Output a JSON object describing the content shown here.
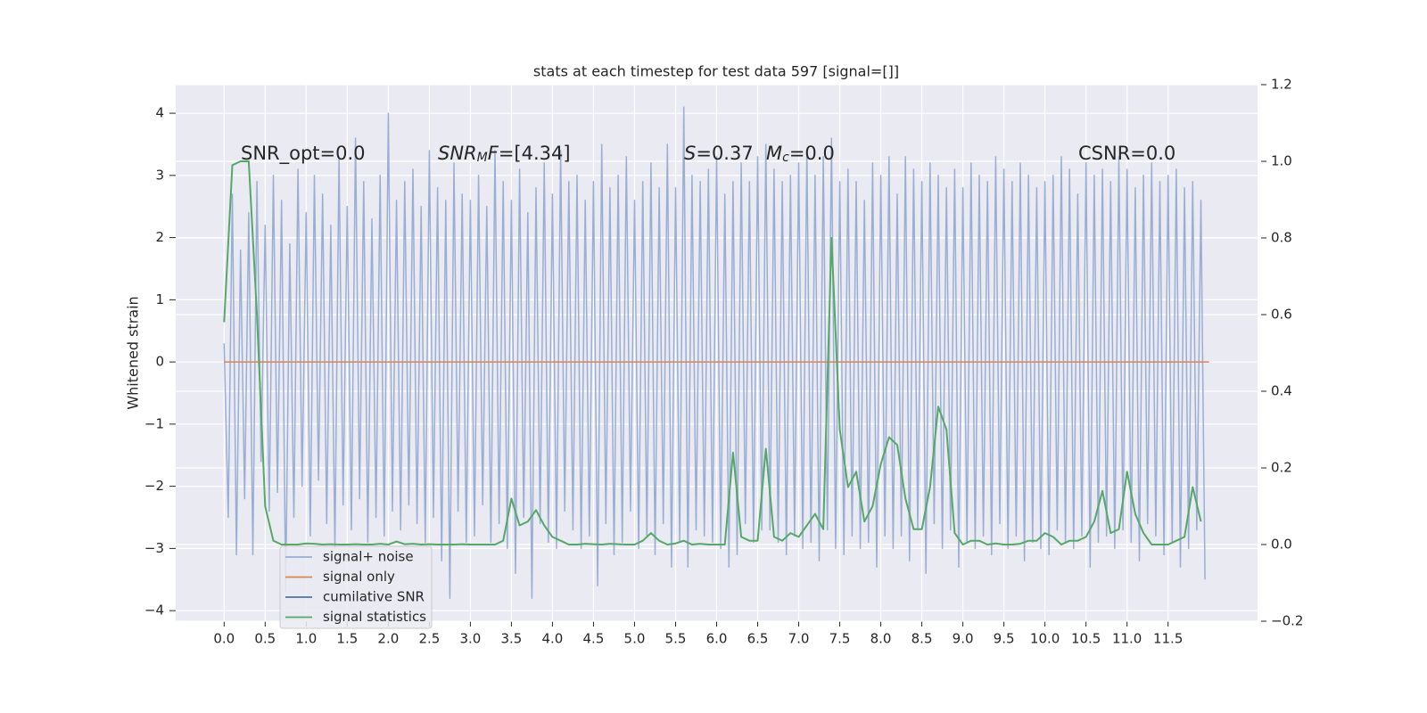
{
  "chart_data": {
    "type": "line",
    "title": "stats at each timestep for test data 597 [signal=[]]",
    "ylabel": "Whitened strain",
    "xlim": [
      -0.59,
      12.59
    ],
    "ylim": [
      -4.17,
      4.46
    ],
    "y2lim": [
      -0.2,
      1.2
    ],
    "xticks": [
      {
        "value": 0,
        "label": "0.0"
      },
      0.5,
      {
        "value": 1,
        "label": "1.0"
      },
      1.5,
      {
        "value": 2,
        "label": "2.0"
      },
      2.5,
      {
        "value": 3,
        "label": "3.0"
      },
      3.5,
      {
        "value": 4,
        "label": "4.0"
      },
      4.5,
      {
        "value": 5,
        "label": "5.0"
      },
      5.5,
      {
        "value": 6,
        "label": "6.0"
      },
      6.5,
      {
        "value": 7,
        "label": "7.0"
      },
      7.5,
      {
        "value": 8,
        "label": "8.0"
      },
      8.5,
      {
        "value": 9,
        "label": "9.0"
      },
      9.5,
      {
        "value": 10,
        "label": "10.0"
      },
      10.5,
      {
        "value": 11,
        "label": "11.0"
      },
      11.5
    ],
    "yticks": [
      {
        "value": -4,
        "label": "−4"
      },
      {
        "value": -3,
        "label": "−3"
      },
      {
        "value": -2,
        "label": "−2"
      },
      {
        "value": -1,
        "label": "−1"
      },
      0,
      1,
      2,
      3,
      4
    ],
    "y2ticks": [
      {
        "value": -0.2,
        "label": "−0.2"
      },
      {
        "value": 0,
        "label": "0.0"
      },
      0.2,
      0.4,
      0.6,
      0.8,
      {
        "value": 1,
        "label": "1.0"
      },
      1.2
    ],
    "grid": true,
    "legend": "lower left",
    "annotations": [
      {
        "parts": [
          {
            "text": "SNR_opt=0.0"
          }
        ]
      },
      {
        "parts": [
          {
            "text": "SNR",
            "style": "italic"
          },
          {
            "text": "M",
            "style": "sub"
          },
          {
            "text": "F",
            "style": "italic"
          },
          {
            "text": "=[4.34]"
          }
        ]
      },
      {
        "parts": [
          {
            "text": "S",
            "style": "italic"
          },
          {
            "text": "=0.37"
          }
        ]
      },
      {
        "parts": [
          {
            "text": "M",
            "style": "italic"
          },
          {
            "text": "c",
            "style": "sub"
          },
          {
            "text": "=0.0"
          }
        ]
      },
      {
        "parts": [
          {
            "text": "CSNR=0.0"
          }
        ]
      }
    ],
    "series": [
      {
        "name": "signal+ noise",
        "color": "#9aaed4",
        "x": [
          0,
          0.05,
          0.1,
          0.15,
          0.2,
          0.25,
          0.3,
          0.35,
          0.4,
          0.45,
          0.5,
          0.55,
          0.6,
          0.65,
          0.7,
          0.75,
          0.8,
          0.85,
          0.9,
          0.95,
          1,
          1.05,
          1.1,
          1.15,
          1.2,
          1.25,
          1.3,
          1.35,
          1.4,
          1.45,
          1.5,
          1.55,
          1.6,
          1.65,
          1.7,
          1.75,
          1.8,
          1.85,
          1.9,
          1.95,
          2,
          2.05,
          2.1,
          2.15,
          2.2,
          2.25,
          2.3,
          2.35,
          2.4,
          2.45,
          2.5,
          2.55,
          2.6,
          2.65,
          2.7,
          2.75,
          2.8,
          2.85,
          2.9,
          2.95,
          3,
          3.05,
          3.1,
          3.15,
          3.2,
          3.25,
          3.3,
          3.35,
          3.4,
          3.45,
          3.5,
          3.55,
          3.6,
          3.65,
          3.7,
          3.75,
          3.8,
          3.85,
          3.9,
          3.95,
          4,
          4.05,
          4.1,
          4.15,
          4.2,
          4.25,
          4.3,
          4.35,
          4.4,
          4.45,
          4.5,
          4.55,
          4.6,
          4.65,
          4.7,
          4.75,
          4.8,
          4.85,
          4.9,
          4.95,
          5,
          5.05,
          5.1,
          5.15,
          5.2,
          5.25,
          5.3,
          5.35,
          5.4,
          5.45,
          5.5,
          5.55,
          5.6,
          5.65,
          5.7,
          5.75,
          5.8,
          5.85,
          5.9,
          5.95,
          6,
          6.05,
          6.1,
          6.15,
          6.2,
          6.25,
          6.3,
          6.35,
          6.4,
          6.45,
          6.5,
          6.55,
          6.6,
          6.65,
          6.7,
          6.75,
          6.8,
          6.85,
          6.9,
          6.95,
          7,
          7.05,
          7.1,
          7.15,
          7.2,
          7.25,
          7.3,
          7.35,
          7.4,
          7.45,
          7.5,
          7.55,
          7.6,
          7.65,
          7.7,
          7.75,
          7.8,
          7.85,
          7.9,
          7.95,
          8,
          8.05,
          8.1,
          8.15,
          8.2,
          8.25,
          8.3,
          8.35,
          8.4,
          8.45,
          8.5,
          8.55,
          8.6,
          8.65,
          8.7,
          8.75,
          8.8,
          8.85,
          8.9,
          8.95,
          9,
          9.05,
          9.1,
          9.15,
          9.2,
          9.25,
          9.3,
          9.35,
          9.4,
          9.45,
          9.5,
          9.55,
          9.6,
          9.65,
          9.7,
          9.75,
          9.8,
          9.85,
          9.9,
          9.95,
          10,
          10.05,
          10.1,
          10.15,
          10.2,
          10.25,
          10.3,
          10.35,
          10.4,
          10.45,
          10.5,
          10.55,
          10.6,
          10.65,
          10.7,
          10.75,
          10.8,
          10.85,
          10.9,
          10.95,
          11,
          11.05,
          11.1,
          11.15,
          11.2,
          11.25,
          11.3,
          11.35,
          11.4,
          11.45,
          11.5,
          11.55,
          11.6,
          11.65,
          11.7,
          11.75,
          11.8,
          11.85,
          11.9,
          11.95
        ],
        "values": [
          0.3,
          -2.5,
          2.7,
          -3.1,
          1.8,
          -2.2,
          2.4,
          -3.1,
          2.9,
          -1.6,
          2.2,
          -2.4,
          3.0,
          -2.1,
          2.6,
          -3.7,
          1.9,
          -2.5,
          3.1,
          -2.0,
          2.4,
          -2.8,
          3.0,
          -1.9,
          2.7,
          -2.6,
          2.2,
          -3.0,
          3.3,
          -2.3,
          2.5,
          -2.7,
          3.6,
          -2.2,
          2.9,
          -2.9,
          2.3,
          -2.5,
          3.0,
          -2.8,
          4.0,
          -2.4,
          2.6,
          -2.7,
          2.9,
          -2.3,
          3.1,
          -2.6,
          2.5,
          -2.9,
          3.4,
          -2.5,
          2.8,
          -3.2,
          2.6,
          -3.8,
          3.2,
          -2.4,
          2.7,
          -2.9,
          2.6,
          -2.8,
          3.0,
          -2.3,
          2.5,
          -2.9,
          3.4,
          -2.6,
          2.9,
          -3.0,
          2.6,
          -3.4,
          3.1,
          -2.5,
          2.4,
          -3.8,
          2.8,
          -2.6,
          3.2,
          -2.9,
          2.7,
          -3.0,
          3.4,
          -2.4,
          2.9,
          -2.7,
          3.0,
          -3.0,
          2.6,
          -2.8,
          2.9,
          -3.6,
          3.5,
          -2.6,
          2.8,
          -3.1,
          3.0,
          -2.9,
          3.3,
          -2.4,
          2.6,
          -3.0,
          2.9,
          -2.8,
          3.2,
          -3.1,
          2.8,
          -2.6,
          3.5,
          -3.3,
          2.8,
          -2.9,
          4.1,
          -3.3,
          3.0,
          -2.7,
          2.9,
          -2.8,
          3.1,
          -2.9,
          3.3,
          -3.0,
          2.7,
          -3.3,
          2.9,
          -3.1,
          3.2,
          -2.6,
          2.9,
          -2.9,
          3.3,
          -2.7,
          3.5,
          -2.7,
          3.1,
          -2.9,
          2.9,
          -3.1,
          3.0,
          -2.8,
          3.2,
          -3.0,
          3.4,
          -2.9,
          3.0,
          -3.2,
          3.3,
          -2.7,
          3.6,
          -3.0,
          2.9,
          -3.1,
          3.1,
          -2.8,
          2.9,
          -3.0,
          2.6,
          -2.9,
          3.2,
          -3.3,
          3.0,
          -2.8,
          3.3,
          -3.0,
          2.7,
          -2.8,
          3.3,
          -3.2,
          3.1,
          -2.7,
          2.9,
          -3.4,
          3.2,
          -2.6,
          3.0,
          -3.0,
          2.8,
          -2.7,
          3.1,
          -3.3,
          2.8,
          -2.9,
          3.2,
          -3.0,
          3.0,
          -2.8,
          2.9,
          -3.1,
          3.3,
          -2.6,
          3.1,
          -3.0,
          2.9,
          -2.8,
          3.2,
          -3.2,
          3.0,
          -2.9,
          2.8,
          -3.0,
          2.9,
          -3.1,
          3.0,
          -2.7,
          3.3,
          -2.9,
          3.1,
          -3.0,
          2.7,
          -2.8,
          3.2,
          -3.3,
          3.0,
          -2.9,
          3.1,
          -2.8,
          2.9,
          -3.0,
          3.3,
          -2.7,
          3.1,
          -2.9,
          2.8,
          -3.2,
          3.0,
          -2.6,
          3.2,
          -2.8,
          2.9,
          -3.1,
          3.0,
          -2.9,
          3.1,
          -3.3,
          2.8,
          -3.0,
          2.9,
          -2.7,
          2.6,
          -3.5
        ]
      },
      {
        "name": "signal only",
        "color": "#dd8452",
        "x": [
          0,
          12
        ],
        "values": [
          0,
          0
        ]
      },
      {
        "name": "cumilative SNR",
        "color": "#4c72b0",
        "x": [],
        "values": []
      },
      {
        "name": "signal statistics",
        "color": "#55a868",
        "axis": "y2",
        "x": [
          0,
          0.1,
          0.2,
          0.3,
          0.4,
          0.5,
          0.6,
          0.7,
          0.8,
          0.9,
          1,
          1.1,
          1.2,
          1.3,
          1.4,
          1.5,
          1.6,
          1.7,
          1.8,
          1.9,
          2,
          2.1,
          2.2,
          2.3,
          2.4,
          2.5,
          2.6,
          2.7,
          2.8,
          2.9,
          3,
          3.1,
          3.2,
          3.3,
          3.4,
          3.5,
          3.6,
          3.7,
          3.8,
          3.9,
          4,
          4.1,
          4.2,
          4.3,
          4.4,
          4.5,
          4.6,
          4.7,
          4.8,
          4.9,
          5,
          5.1,
          5.2,
          5.3,
          5.4,
          5.5,
          5.6,
          5.7,
          5.8,
          5.9,
          6,
          6.1,
          6.2,
          6.3,
          6.4,
          6.5,
          6.6,
          6.7,
          6.8,
          6.9,
          7,
          7.1,
          7.2,
          7.3,
          7.4,
          7.5,
          7.6,
          7.7,
          7.8,
          7.9,
          8,
          8.1,
          8.2,
          8.3,
          8.4,
          8.5,
          8.6,
          8.7,
          8.8,
          8.9,
          9,
          9.1,
          9.2,
          9.3,
          9.4,
          9.5,
          9.6,
          9.7,
          9.8,
          9.9,
          10,
          10.1,
          10.2,
          10.3,
          10.4,
          10.5,
          10.6,
          10.7,
          10.8,
          10.9,
          11,
          11.1,
          11.2,
          11.3,
          11.4,
          11.5,
          11.6,
          11.7,
          11.8,
          11.9
        ],
        "values": [
          0.58,
          0.99,
          1.0,
          1.0,
          0.6,
          0.1,
          0.01,
          0.0,
          0.0,
          0.0,
          0.003,
          0.002,
          0.0,
          0.001,
          0.0,
          0.0,
          0.001,
          0.0,
          0.0,
          0.002,
          0.0,
          0.008,
          0.001,
          0.002,
          0.0,
          0.001,
          0.0,
          0.0,
          0.0,
          0.001,
          0.0,
          0.0,
          0.0,
          0.0,
          0.01,
          0.12,
          0.05,
          0.06,
          0.09,
          0.05,
          0.02,
          0.01,
          0.0,
          0.0,
          0.002,
          0.001,
          0.0,
          0.002,
          0.001,
          0.0,
          0.0,
          0.01,
          0.03,
          0.01,
          0.0,
          0.003,
          0.01,
          0.0,
          0.002,
          0.0,
          0.0,
          0.0,
          0.24,
          0.02,
          0.01,
          0.01,
          0.25,
          0.02,
          0.01,
          0.03,
          0.02,
          0.05,
          0.08,
          0.04,
          0.8,
          0.3,
          0.15,
          0.19,
          0.06,
          0.1,
          0.21,
          0.28,
          0.26,
          0.12,
          0.04,
          0.04,
          0.15,
          0.36,
          0.3,
          0.03,
          0.0,
          0.01,
          0.01,
          0.0,
          0.003,
          0.0,
          0.0,
          0.002,
          0.01,
          0.01,
          0.03,
          0.02,
          0.0,
          0.01,
          0.01,
          0.02,
          0.06,
          0.14,
          0.03,
          0.04,
          0.19,
          0.08,
          0.03,
          0.0,
          0.0,
          0.0,
          0.01,
          0.02,
          0.15,
          0.06
        ]
      }
    ]
  }
}
